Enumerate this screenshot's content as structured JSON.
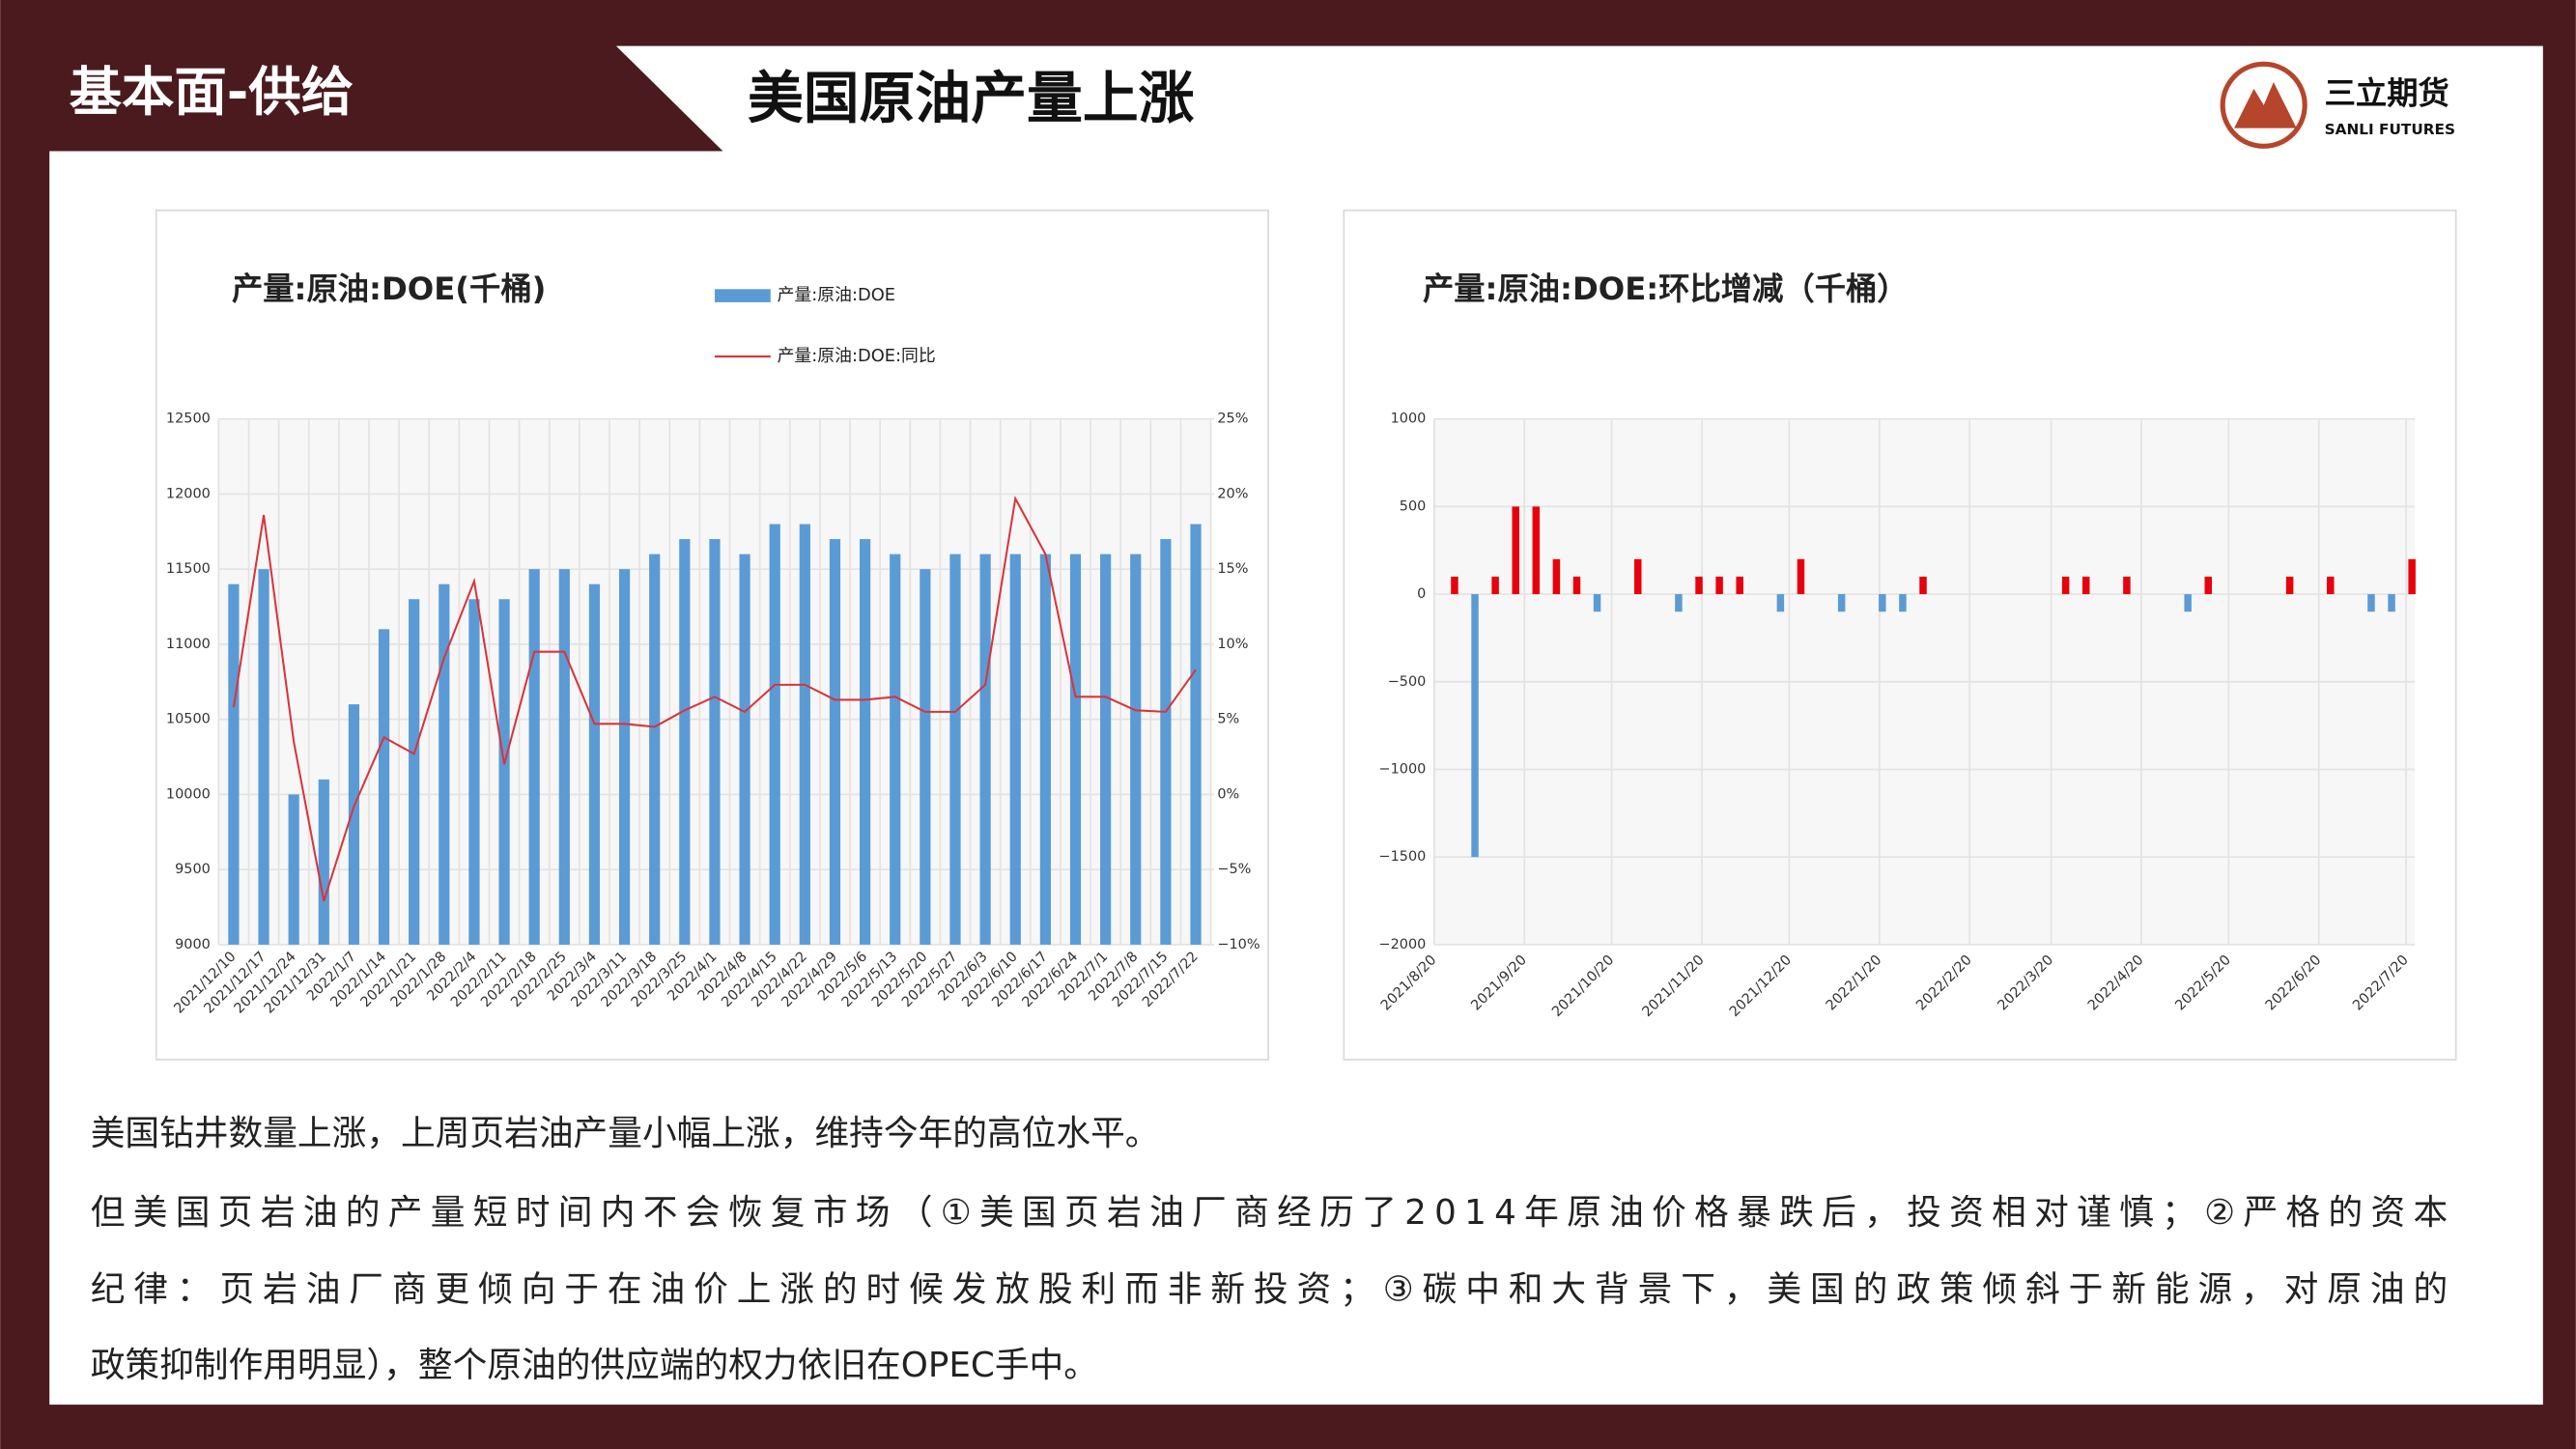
{
  "header": {
    "section": "基本面-供给",
    "title": "美国原油产量上涨",
    "logo_name": "三立期货",
    "logo_sub": "SANLI FUTURES"
  },
  "chart_data": [
    {
      "type": "combo",
      "title": "产量:原油:DOE(千桶)",
      "categories": [
        "2021/12/10",
        "2021/12/17",
        "2021/12/24",
        "2021/12/31",
        "2022/1/7",
        "2022/1/14",
        "2022/1/21",
        "2022/1/28",
        "2022/2/4",
        "2022/2/11",
        "2022/2/18",
        "2022/2/25",
        "2022/3/4",
        "2022/3/11",
        "2022/3/18",
        "2022/3/25",
        "2022/4/1",
        "2022/4/8",
        "2022/4/15",
        "2022/4/22",
        "2022/4/29",
        "2022/5/6",
        "2022/5/13",
        "2022/5/20",
        "2022/5/27",
        "2022/6/3",
        "2022/6/10",
        "2022/6/17",
        "2022/6/24",
        "2022/7/1",
        "2022/7/8",
        "2022/7/15",
        "2022/7/22"
      ],
      "series": [
        {
          "name": "产量:原油:DOE",
          "color": "#5b9bd5",
          "type": "bar",
          "values": [
            11400,
            11500,
            10000,
            10100,
            10600,
            11100,
            11300,
            11400,
            11300,
            11300,
            11500,
            11500,
            11400,
            11500,
            11600,
            11700,
            11700,
            11600,
            11800,
            11800,
            11700,
            11700,
            11600,
            11500,
            11600,
            11600,
            11600,
            11600,
            11600,
            11600,
            11600,
            11700,
            11800
          ]
        },
        {
          "name": "产量:原油:DOE:同比",
          "color": "#d9343b",
          "type": "line",
          "axis": "y2",
          "values": [
            5.8,
            18.6,
            3.5,
            -7.1,
            -0.8,
            3.8,
            2.7,
            9.1,
            14.2,
            2.0,
            9.5,
            9.5,
            4.7,
            4.7,
            4.5,
            5.6,
            6.5,
            5.5,
            7.3,
            7.3,
            6.3,
            6.3,
            6.5,
            5.5,
            5.5,
            7.3,
            19.7,
            16.0,
            6.5,
            6.5,
            5.6,
            5.5,
            8.3
          ]
        }
      ],
      "ylim": [
        9000,
        12500
      ],
      "yticks": [
        9000,
        9500,
        10000,
        10500,
        11000,
        11500,
        12000,
        12500
      ],
      "y2lim": [
        -10,
        25
      ],
      "y2ticks": [
        {
          "value": -10,
          "label": "−10%"
        },
        {
          "value": -5,
          "label": "−5%"
        },
        {
          "value": 0,
          "label": "0%"
        },
        {
          "value": 5,
          "label": "5%"
        },
        {
          "value": 10,
          "label": "10%"
        },
        {
          "value": 15,
          "label": "15%"
        },
        {
          "value": 20,
          "label": "20%"
        },
        {
          "value": 25,
          "label": "25%"
        }
      ],
      "grid": true
    },
    {
      "type": "bar",
      "title": "产量:原油:DOE:环比增减（千桶）",
      "x": [
        "2021/8/27",
        "2021/9/3",
        "2021/9/10",
        "2021/9/17",
        "2021/9/24",
        "2021/10/1",
        "2021/10/8",
        "2021/10/15",
        "2021/10/29",
        "2021/11/12",
        "2021/11/19",
        "2021/11/26",
        "2021/12/3",
        "2021/12/17",
        "2021/12/24",
        "2022/1/7",
        "2022/1/21",
        "2022/1/28",
        "2022/2/4",
        "2022/3/25",
        "2022/4/1",
        "2022/4/15",
        "2022/5/6",
        "2022/5/13",
        "2022/6/10",
        "2022/6/24",
        "2022/7/8",
        "2022/7/15",
        "2022/7/22"
      ],
      "values": [
        100,
        -1500,
        100,
        500,
        500,
        200,
        100,
        -100,
        200,
        -100,
        100,
        100,
        100,
        -100,
        200,
        -100,
        -100,
        -100,
        100,
        100,
        100,
        100,
        -100,
        100,
        100,
        100,
        -100,
        -100,
        200
      ],
      "positive_color": "#e8000b",
      "negative_color": "#5b9bd5",
      "xlim": [
        "2021/8/20",
        "2022/7/23"
      ],
      "xticks": [
        "2021/8/20",
        "2021/9/20",
        "2021/10/20",
        "2021/11/20",
        "2021/12/20",
        "2022/1/20",
        "2022/2/20",
        "2022/3/20",
        "2022/4/20",
        "2022/5/20",
        "2022/6/20",
        "2022/7/20"
      ],
      "ylim": [
        -2000,
        1000
      ],
      "yticks": [
        {
          "value": -2000,
          "label": "−2000"
        },
        {
          "value": -1500,
          "label": "−1500"
        },
        {
          "value": -1000,
          "label": "−1000"
        },
        {
          "value": -500,
          "label": "−500"
        },
        0,
        500,
        1000
      ],
      "grid": true
    }
  ],
  "body_lines": [
    "美国钻井数量上涨，上周页岩油产量小幅上涨，维持今年的高位水平。",
    "但美国页岩油的产量短时间内不会恢复市场（①美国页岩油厂商经历了2014年原油价格暴跌后，投资相对谨慎；②严格的资本",
    "纪律：页岩油厂商更倾向于在油价上涨的时候发放股利而非新投资；③碳中和大背景下，美国的政策倾斜于新能源，对原油的",
    "政策抑制作用明显），整个原油的供应端的权力依旧在OPEC手中。"
  ]
}
